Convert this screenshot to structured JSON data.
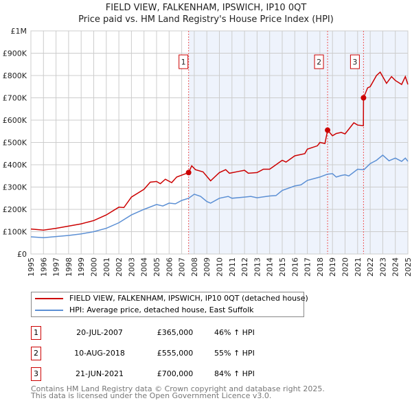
{
  "chart_data": {
    "type": "line",
    "title": "FIELD VIEW, FALKENHAM, IPSWICH, IP10 0QT",
    "subtitle": "Price paid vs. HM Land Registry's House Price Index (HPI)",
    "xlabel": "",
    "ylabel": "",
    "xlim": [
      1995,
      2025
    ],
    "ylim": [
      0,
      1000000
    ],
    "grid": true,
    "x_ticks": [
      "1995",
      "1996",
      "1997",
      "1998",
      "1999",
      "2000",
      "2001",
      "2002",
      "2003",
      "2004",
      "2005",
      "2006",
      "2007",
      "2008",
      "2009",
      "2010",
      "2011",
      "2012",
      "2013",
      "2014",
      "2015",
      "2016",
      "2017",
      "2018",
      "2019",
      "2020",
      "2021",
      "2022",
      "2023",
      "2024",
      "2025"
    ],
    "y_ticks": [
      {
        "v": 0,
        "label": "£0"
      },
      {
        "v": 100000,
        "label": "£100K"
      },
      {
        "v": 200000,
        "label": "£200K"
      },
      {
        "v": 300000,
        "label": "£300K"
      },
      {
        "v": 400000,
        "label": "£400K"
      },
      {
        "v": 500000,
        "label": "£500K"
      },
      {
        "v": 600000,
        "label": "£600K"
      },
      {
        "v": 700000,
        "label": "£700K"
      },
      {
        "v": 800000,
        "label": "£800K"
      },
      {
        "v": 900000,
        "label": "£900K"
      },
      {
        "v": 1000000,
        "label": "£1M"
      }
    ],
    "series": [
      {
        "name": "FIELD VIEW, FALKENHAM, IPSWICH, IP10 0QT (detached house)",
        "color": "#cc0000",
        "x": [
          1995,
          1996,
          1997,
          1998,
          1999,
          2000,
          2001,
          2002,
          2002.4,
          2003,
          2004,
          2004.5,
          2005,
          2005.3,
          2005.7,
          2006.2,
          2006.6,
          2007.55,
          2007.8,
          2008.1,
          2008.7,
          2009.3,
          2010,
          2010.5,
          2010.8,
          2011.5,
          2012,
          2012.3,
          2013,
          2013.5,
          2014,
          2014.5,
          2015,
          2015.3,
          2016,
          2016.8,
          2017,
          2017.8,
          2018,
          2018.4,
          2018.61,
          2019,
          2019.3,
          2019.7,
          2020,
          2020.7,
          2021,
          2021.46,
          2021.47,
          2021.8,
          2022,
          2022.5,
          2022.8,
          2023.3,
          2023.7,
          2024,
          2024.5,
          2024.8,
          2025
        ],
        "y": [
          112000,
          107000,
          115000,
          125000,
          135000,
          150000,
          175000,
          210000,
          208000,
          255000,
          290000,
          322000,
          325000,
          315000,
          335000,
          320000,
          345000,
          365000,
          395000,
          378000,
          368000,
          328000,
          365000,
          378000,
          362000,
          370000,
          375000,
          362000,
          365000,
          380000,
          380000,
          400000,
          420000,
          412000,
          440000,
          450000,
          470000,
          485000,
          500000,
          495000,
          555000,
          530000,
          540000,
          545000,
          538000,
          588000,
          578000,
          575000,
          700000,
          745000,
          750000,
          800000,
          815000,
          765000,
          795000,
          778000,
          760000,
          795000,
          760000
        ]
      },
      {
        "name": "HPI: Average price, detached house, East Suffolk",
        "color": "#5b8fd4",
        "x": [
          1995,
          1996,
          1997,
          1998,
          1999,
          2000,
          2001,
          2002,
          2003,
          2004,
          2005,
          2005.5,
          2006,
          2006.5,
          2007,
          2007.55,
          2008,
          2008.5,
          2009,
          2009.3,
          2010,
          2010.7,
          2011,
          2012,
          2012.5,
          2013,
          2014,
          2014.5,
          2015,
          2016,
          2016.5,
          2017,
          2018,
          2018.6,
          2019,
          2019.3,
          2019.7,
          2020,
          2020.3,
          2021,
          2021.5,
          2022,
          2022.5,
          2023,
          2023.5,
          2024,
          2024.5,
          2024.8,
          2025
        ],
        "y": [
          77000,
          73000,
          78000,
          83000,
          90000,
          100000,
          115000,
          140000,
          175000,
          200000,
          222000,
          215000,
          228000,
          225000,
          240000,
          250000,
          268000,
          258000,
          235000,
          228000,
          250000,
          258000,
          250000,
          255000,
          258000,
          252000,
          260000,
          262000,
          285000,
          305000,
          310000,
          330000,
          345000,
          358000,
          360000,
          345000,
          352000,
          355000,
          350000,
          380000,
          378000,
          405000,
          420000,
          443000,
          418000,
          430000,
          415000,
          430000,
          415000
        ]
      }
    ],
    "annotations": [
      {
        "label": "1",
        "x": 2007.55,
        "y": 365000
      },
      {
        "label": "2",
        "x": 2018.61,
        "y": 555000
      },
      {
        "label": "3",
        "x": 2021.47,
        "y": 700000
      }
    ],
    "legend_placement": "below"
  },
  "legend": [
    {
      "label": "FIELD VIEW, FALKENHAM, IPSWICH, IP10 0QT (detached house)",
      "color": "#cc0000"
    },
    {
      "label": "HPI: Average price, detached house, East Suffolk",
      "color": "#5b8fd4"
    }
  ],
  "sales": [
    {
      "num": "1",
      "date": "20-JUL-2007",
      "price": "£365,000",
      "hpi": "46% ↑ HPI"
    },
    {
      "num": "2",
      "date": "10-AUG-2018",
      "price": "£555,000",
      "hpi": "55% ↑ HPI"
    },
    {
      "num": "3",
      "date": "21-JUN-2021",
      "price": "£700,000",
      "hpi": "84% ↑ HPI"
    }
  ],
  "footer": {
    "line1": "Contains HM Land Registry data © Crown copyright and database right 2025.",
    "line2": "This data is licensed under the Open Government Licence v3.0."
  }
}
